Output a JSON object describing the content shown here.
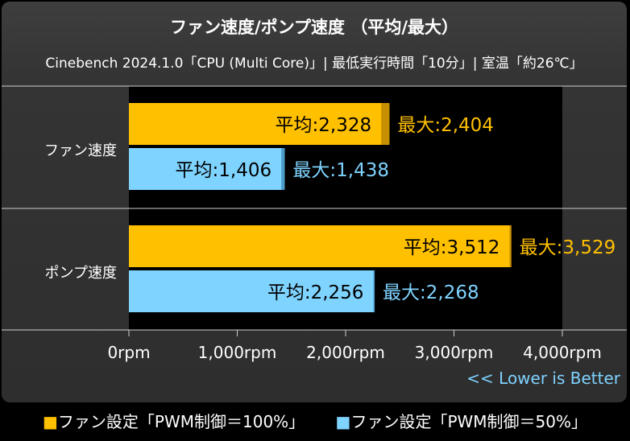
{
  "chart_data": {
    "type": "bar",
    "orientation": "horizontal",
    "title": "ファン速度/ポンプ速度 （平均/最大）",
    "subtitle": "Cinebench 2024.1.0「CPU (Multi Core)」| 最低実行時間「10分」| 室温「約26℃」",
    "categories": [
      "ファン速度",
      "ポンプ速度"
    ],
    "series": [
      {
        "name": "ファン設定「PWM制御＝100%」",
        "color": "#ffc000",
        "label_color": "#ffc000",
        "average": [
          2328,
          3512
        ],
        "maximum": [
          2404,
          3529
        ],
        "average_labels": [
          "平均:2,328",
          "平均:3,512"
        ],
        "maximum_labels": [
          "最大:2,404",
          "最大:3,529"
        ]
      },
      {
        "name": "ファン設定「PWM制御＝50%」",
        "color": "#7fd3ff",
        "label_color": "#7fd3ff",
        "average": [
          1406,
          2256
        ],
        "maximum": [
          1438,
          2268
        ],
        "average_labels": [
          "平均:1,406",
          "平均:2,256"
        ],
        "maximum_labels": [
          "最大:1,438",
          "最大:2,268"
        ]
      }
    ],
    "xlim": [
      0,
      4000
    ],
    "xticks": [
      0,
      1000,
      2000,
      3000,
      4000
    ],
    "xtick_labels": [
      "0rpm",
      "1,000rpm",
      "2,000rpm",
      "3,000rpm",
      "4,000rpm"
    ],
    "note": "<< Lower is Better",
    "note_color": "#7fd3ff",
    "plot_background": "#000000",
    "legend_position": "bottom"
  }
}
